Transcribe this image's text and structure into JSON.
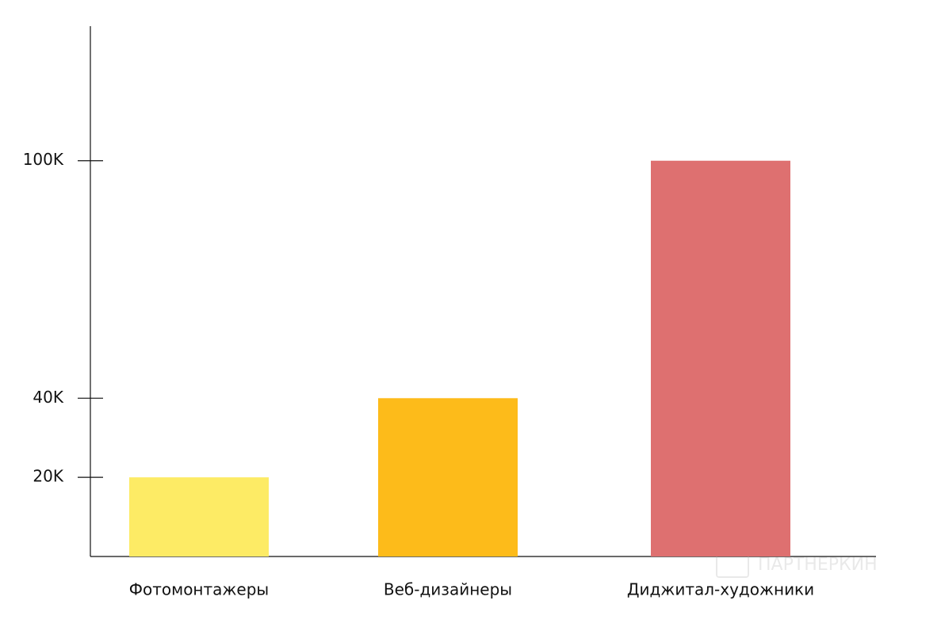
{
  "chart_data": {
    "type": "bar",
    "categories": [
      "Фотомонтажеры",
      "Веб-дизайнеры",
      "Диджитал-художники"
    ],
    "values": [
      20000,
      40000,
      100000
    ],
    "colors": [
      "#fdeb65",
      "#fdbb1a",
      "#de7070"
    ],
    "ylim": [
      0,
      134000
    ],
    "yticks": [
      {
        "value": 20000,
        "label": "20K"
      },
      {
        "value": 40000,
        "label": "40K"
      },
      {
        "value": 100000,
        "label": "100K"
      }
    ],
    "grid": false,
    "watermark": "ПАРТНЕРКИН"
  }
}
